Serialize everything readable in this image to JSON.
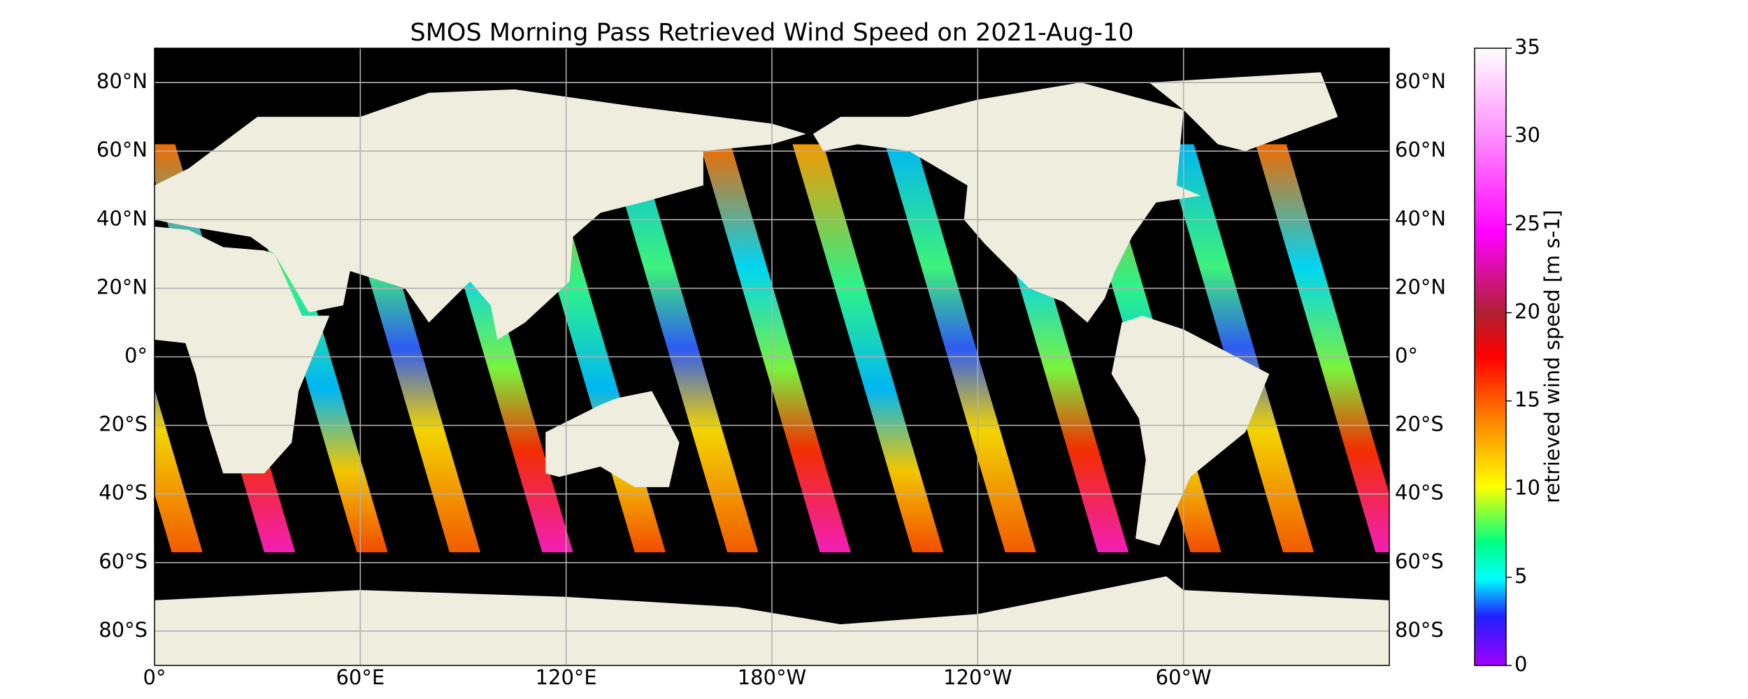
{
  "map": {
    "title": "SMOS Morning Pass Retrieved Wind Speed on 2021-Aug-10",
    "xlim": [
      0,
      360
    ],
    "ylim": [
      -90,
      90
    ],
    "lon_ticks": [
      {
        "value": 0,
        "label": "0°"
      },
      {
        "value": 60,
        "label": "60°E"
      },
      {
        "value": 120,
        "label": "120°E"
      },
      {
        "value": -180,
        "label": "180°W"
      },
      {
        "value": -120,
        "label": "120°W"
      },
      {
        "value": -60,
        "label": "60°W"
      }
    ],
    "lat_ticks": [
      {
        "value": 80,
        "label": "80°N"
      },
      {
        "value": 60,
        "label": "60°N"
      },
      {
        "value": 40,
        "label": "40°N"
      },
      {
        "value": 20,
        "label": "20°N"
      },
      {
        "value": 0,
        "label": "0°"
      },
      {
        "value": -20,
        "label": "20°S"
      },
      {
        "value": -40,
        "label": "40°S"
      },
      {
        "value": -60,
        "label": "60°S"
      },
      {
        "value": -80,
        "label": "80°S"
      }
    ],
    "colorbar": {
      "label": "retrieved wind speed [m s-1]",
      "lim": [
        0,
        35
      ],
      "ticks": [
        0,
        5,
        10,
        15,
        20,
        25,
        30,
        35
      ]
    }
  }
}
